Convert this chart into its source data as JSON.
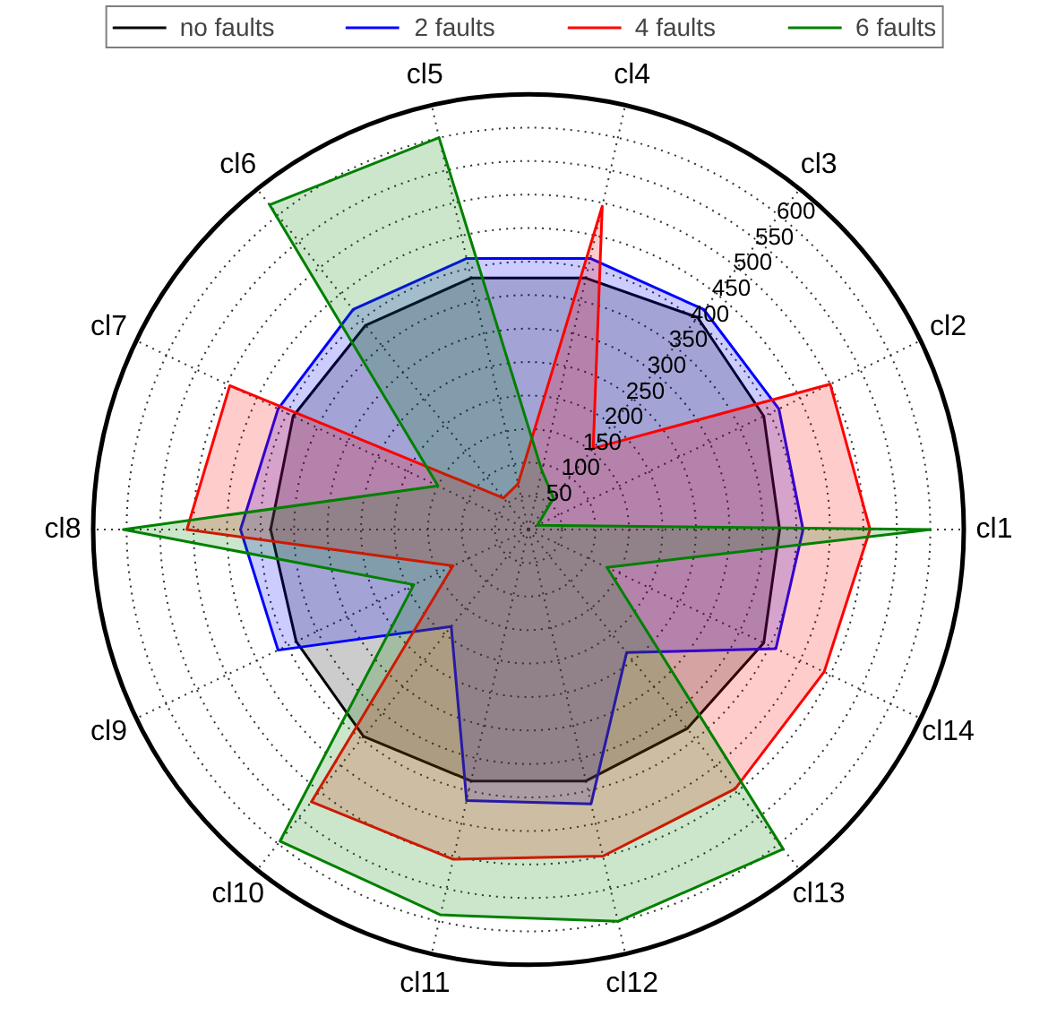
{
  "chart_data": {
    "type": "radar",
    "categories": [
      "cl4",
      "cl3",
      "cl2",
      "cl1",
      "cl14",
      "cl13",
      "cl12",
      "cl11",
      "cl10",
      "cl9",
      "cl8",
      "cl7",
      "cl6",
      "cl5"
    ],
    "series": [
      {
        "name": "no faults",
        "color": "#000000",
        "values": [
          385,
          405,
          390,
          375,
          390,
          380,
          385,
          385,
          395,
          385,
          385,
          390,
          390,
          385
        ]
      },
      {
        "name": "2 faults",
        "color": "#0000ff",
        "values": [
          415,
          420,
          415,
          410,
          410,
          235,
          420,
          415,
          185,
          415,
          430,
          415,
          420,
          415
        ]
      },
      {
        "name": "4 faults",
        "color": "#ff0000",
        "values": [
          495,
          155,
          500,
          510,
          490,
          495,
          500,
          505,
          520,
          125,
          510,
          495,
          60,
          70
        ]
      },
      {
        "name": "6 faults",
        "color": "#008000",
        "values": [
          90,
          60,
          15,
          600,
          130,
          610,
          600,
          590,
          595,
          190,
          605,
          150,
          620,
          600
        ]
      }
    ],
    "ylim": [
      0,
      650
    ],
    "yticks": [
      50,
      100,
      150,
      200,
      250,
      300,
      350,
      400,
      450,
      500,
      550,
      600
    ],
    "grid": true,
    "legend": "top"
  }
}
